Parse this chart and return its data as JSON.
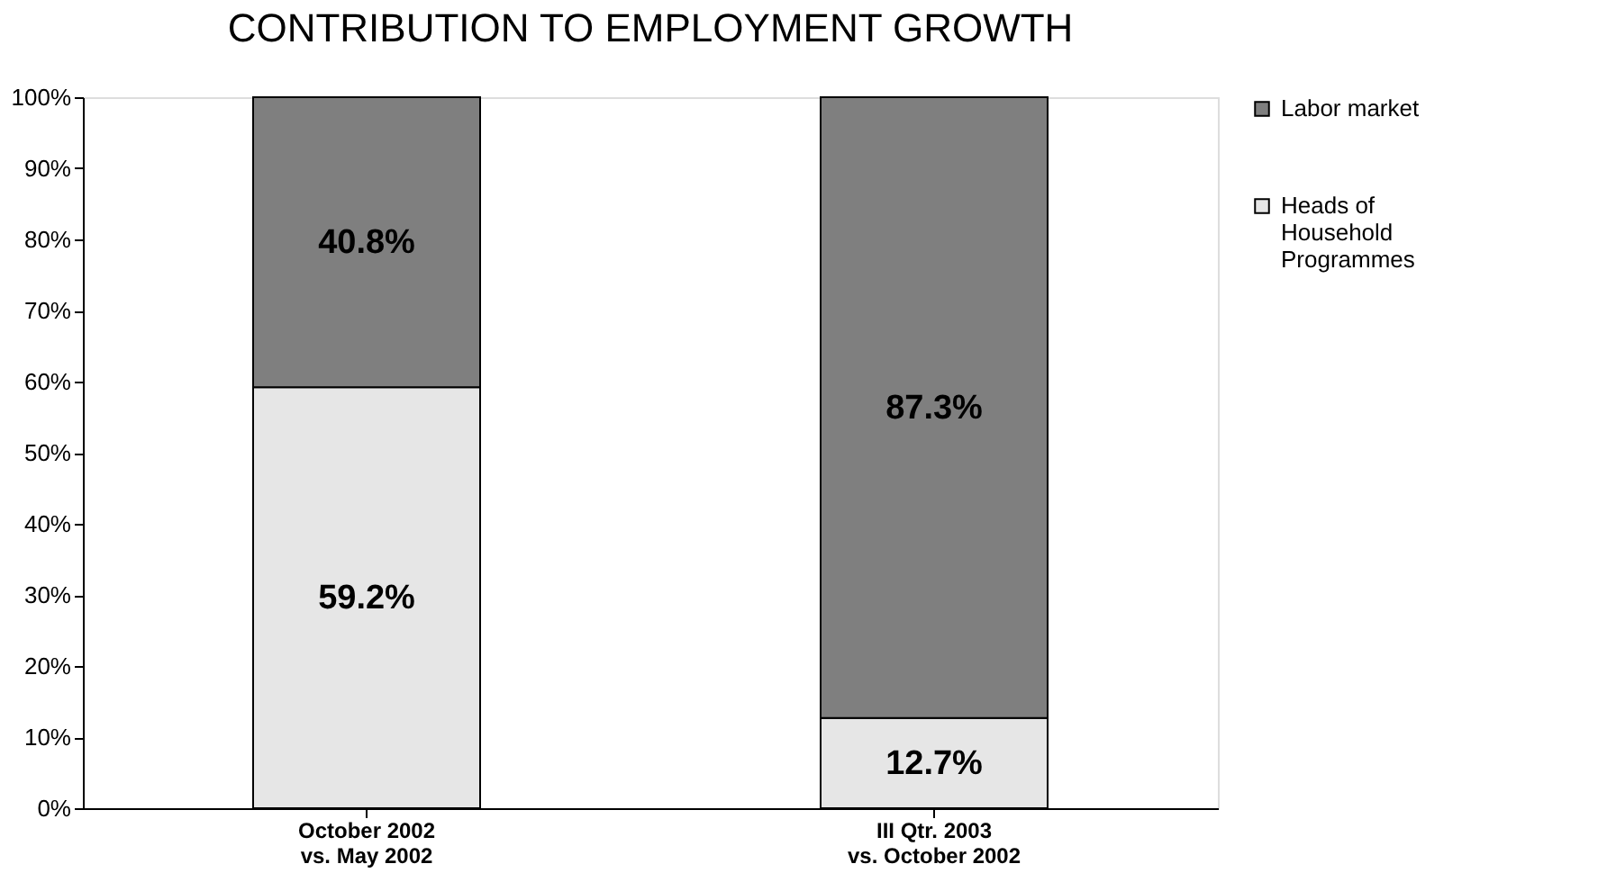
{
  "chart_data": {
    "type": "bar",
    "title": "CONTRIBUTION TO EMPLOYMENT GROWTH",
    "categories": [
      "October 2002\nvs. May 2002",
      "III Qtr. 2003\nvs. October 2002"
    ],
    "stacked": true,
    "series": [
      {
        "name": "Heads of\nHousehold\nProgrammes",
        "color": "#e6e6e6",
        "values": [
          59.2,
          12.7
        ],
        "value_labels": [
          "59.2%",
          "12.7%"
        ]
      },
      {
        "name": "Labor market",
        "color": "#7f7f7f",
        "values": [
          40.8,
          87.3
        ],
        "value_labels": [
          "40.8%",
          "87.3%"
        ]
      }
    ],
    "ylim": [
      0,
      100
    ],
    "yticks": [
      {
        "value": 0,
        "label": "0%"
      },
      {
        "value": 10,
        "label": "10%"
      },
      {
        "value": 20,
        "label": "20%"
      },
      {
        "value": 30,
        "label": "30%"
      },
      {
        "value": 40,
        "label": "40%"
      },
      {
        "value": 50,
        "label": "50%"
      },
      {
        "value": 60,
        "label": "60%"
      },
      {
        "value": 70,
        "label": "70%"
      },
      {
        "value": 80,
        "label": "80%"
      },
      {
        "value": 90,
        "label": "90%"
      },
      {
        "value": 100,
        "label": "100%"
      }
    ],
    "legend": "right",
    "grid": false
  }
}
